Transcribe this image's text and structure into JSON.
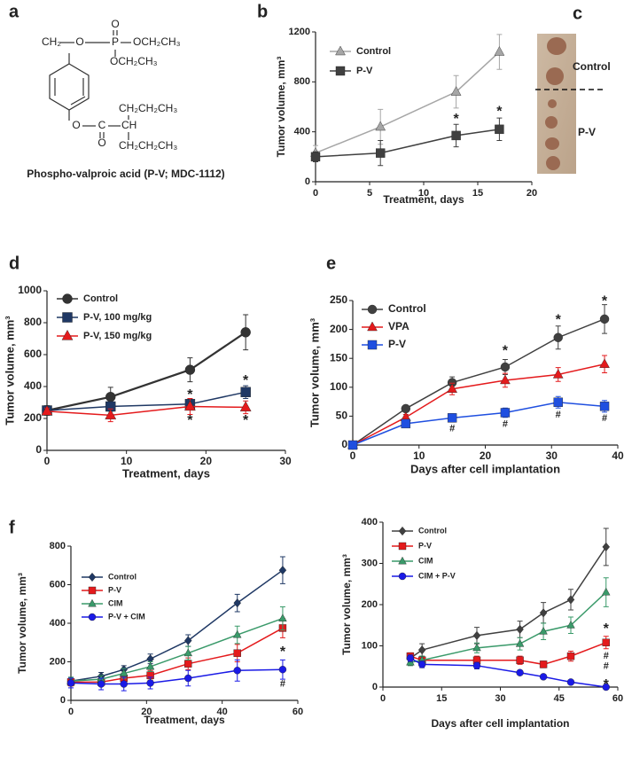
{
  "figure": {
    "structure": {
      "panel": "a",
      "labels": [
        "CH₂",
        "O",
        "P",
        "O",
        "OCH₂CH₃",
        "OCH₂CH₃",
        "O",
        "C",
        "O",
        "CH",
        "CH₂CH₂CH₃",
        "CH₂CH₂CH₃"
      ],
      "caption": "Phospho-valproic acid (P-V; MDC-1112)"
    },
    "photo": {
      "panel": "c",
      "labels": [
        "Control",
        "P-V"
      ]
    }
  },
  "chart_data": [
    {
      "type": "line",
      "panel": "b",
      "xlabel": "Treatment, days",
      "ylabel": "Tumor volume, mm³",
      "x": [
        0,
        6,
        13,
        17
      ],
      "xlim": [
        0,
        20
      ],
      "xticks": [
        0,
        5,
        10,
        15,
        20
      ],
      "ylim": [
        0,
        1200
      ],
      "yticks": [
        0,
        400,
        800,
        1200
      ],
      "legend": "upper left",
      "series": [
        {
          "name": "Control",
          "color": "#a6a6a6",
          "marker": "triangle",
          "values": [
            230,
            440,
            720,
            1040
          ],
          "errors": [
            60,
            140,
            130,
            140
          ]
        },
        {
          "name": "P-V",
          "color": "#404040",
          "marker": "square",
          "values": [
            200,
            230,
            370,
            420
          ],
          "errors": [
            40,
            100,
            90,
            90
          ]
        }
      ],
      "annotations": [
        {
          "text": "*",
          "x": 13,
          "y": 500
        },
        {
          "text": "*",
          "x": 17,
          "y": 560
        }
      ]
    },
    {
      "type": "line",
      "panel": "d",
      "xlabel": "Treatment, days",
      "ylabel": "Tumor volume, mm³",
      "x": [
        0,
        8,
        18,
        25
      ],
      "xlim": [
        0,
        30
      ],
      "xticks": [
        0,
        10,
        20,
        30
      ],
      "ylim": [
        0,
        1000
      ],
      "yticks": [
        0,
        200,
        400,
        600,
        800,
        1000
      ],
      "legend": "upper left",
      "series": [
        {
          "name": "Control",
          "color": "#333333",
          "marker": "circle",
          "values": [
            250,
            335,
            505,
            740
          ],
          "errors": [
            30,
            60,
            75,
            110
          ]
        },
        {
          "name": "P-V, 100 mg/kg",
          "color": "#1f3864",
          "marker": "square",
          "values": [
            250,
            275,
            290,
            365
          ],
          "errors": [
            20,
            30,
            30,
            40
          ]
        },
        {
          "name": "P-V, 150 mg/kg",
          "color": "#e41a1c",
          "marker": "triangle",
          "values": [
            245,
            220,
            275,
            270
          ],
          "errors": [
            20,
            40,
            50,
            40
          ]
        }
      ],
      "annotations": [
        {
          "text": "*",
          "x": 18,
          "y": 345
        },
        {
          "text": "*",
          "x": 25,
          "y": 435
        },
        {
          "text": "*",
          "x": 18,
          "y": 185
        },
        {
          "text": "*",
          "x": 25,
          "y": 185
        }
      ]
    },
    {
      "type": "line",
      "panel": "e",
      "xlabel": "Days after cell implantation",
      "ylabel": "Tumor volume, mm³",
      "x": [
        0,
        8,
        15,
        23,
        31,
        38
      ],
      "xlim": [
        0,
        40
      ],
      "xticks": [
        0,
        10,
        20,
        30,
        40
      ],
      "ylim": [
        0,
        250
      ],
      "yticks": [
        0,
        50,
        100,
        150,
        200,
        250
      ],
      "legend": "upper left",
      "series": [
        {
          "name": "Control",
          "color": "#404040",
          "marker": "circle",
          "values": [
            0,
            63,
            108,
            135,
            186,
            218
          ],
          "errors": [
            0,
            5,
            10,
            13,
            20,
            25
          ]
        },
        {
          "name": "VPA",
          "color": "#e41a1c",
          "marker": "triangle",
          "values": [
            0,
            48,
            97,
            112,
            122,
            140
          ],
          "errors": [
            0,
            5,
            10,
            12,
            12,
            15
          ]
        },
        {
          "name": "P-V",
          "color": "#1f4fe0",
          "marker": "square",
          "values": [
            0,
            37,
            47,
            56,
            74,
            67
          ],
          "errors": [
            0,
            3,
            7,
            8,
            10,
            10
          ]
        }
      ],
      "annotations": [
        {
          "text": "*",
          "x": 23,
          "y": 162
        },
        {
          "text": "*",
          "x": 31,
          "y": 216
        },
        {
          "text": "*",
          "x": 38,
          "y": 248
        },
        {
          "text": "#",
          "x": 15,
          "y": 28
        },
        {
          "text": "#",
          "x": 23,
          "y": 36
        },
        {
          "text": "#",
          "x": 31,
          "y": 52
        },
        {
          "text": "#",
          "x": 38,
          "y": 46
        }
      ]
    },
    {
      "type": "line",
      "panel": "f",
      "xlabel": "Treatment, days",
      "ylabel": "Tumor volume, mm³",
      "x": [
        0,
        8,
        14,
        21,
        31,
        44,
        56
      ],
      "xlim": [
        0,
        60
      ],
      "xticks": [
        0,
        20,
        40,
        60
      ],
      "ylim": [
        0,
        800
      ],
      "yticks": [
        0,
        200,
        400,
        600,
        800
      ],
      "legend": "upper left",
      "series": [
        {
          "name": "Control",
          "color": "#1f3864",
          "marker": "diamond",
          "values": [
            100,
            125,
            160,
            215,
            310,
            505,
            675
          ],
          "errors": [
            20,
            20,
            20,
            25,
            30,
            45,
            70
          ]
        },
        {
          "name": "P-V",
          "color": "#e41a1c",
          "marker": "square",
          "values": [
            95,
            95,
            115,
            130,
            190,
            245,
            375
          ],
          "errors": [
            20,
            20,
            20,
            25,
            30,
            45,
            50
          ]
        },
        {
          "name": "CIM",
          "color": "#3a9a6a",
          "marker": "triangle",
          "values": [
            100,
            110,
            140,
            175,
            245,
            340,
            425
          ],
          "errors": [
            20,
            20,
            25,
            25,
            35,
            45,
            60
          ]
        },
        {
          "name": "P-V + CIM",
          "color": "#1a1ae6",
          "marker": "circle",
          "values": [
            90,
            85,
            85,
            90,
            115,
            155,
            160
          ],
          "errors": [
            25,
            30,
            35,
            30,
            40,
            55,
            50
          ]
        }
      ],
      "annotations": [
        {
          "text": "*",
          "x": 56,
          "y": 250
        },
        {
          "text": "#",
          "x": 56,
          "y": 85
        }
      ]
    },
    {
      "type": "line",
      "xlabel": "Days after cell implantation",
      "ylabel": "Tumor volume, mm³",
      "x": [
        7,
        10,
        24,
        35,
        41,
        48,
        57
      ],
      "xlim": [
        0,
        60
      ],
      "xticks": [
        0,
        15,
        30,
        45,
        60
      ],
      "ylim": [
        0,
        400
      ],
      "yticks": [
        0,
        100,
        200,
        300,
        400
      ],
      "legend": "upper left",
      "series": [
        {
          "name": "Control",
          "color": "#404040",
          "marker": "diamond",
          "values": [
            70,
            90,
            125,
            140,
            180,
            212,
            340
          ],
          "errors": [
            10,
            15,
            20,
            20,
            25,
            25,
            45
          ]
        },
        {
          "name": "P-V",
          "color": "#e41a1c",
          "marker": "square",
          "values": [
            75,
            65,
            65,
            65,
            55,
            75,
            108
          ],
          "errors": [
            8,
            8,
            10,
            10,
            8,
            12,
            15
          ]
        },
        {
          "name": "CIM",
          "color": "#3a9a6a",
          "marker": "triangle",
          "values": [
            60,
            65,
            95,
            105,
            135,
            150,
            230
          ],
          "errors": [
            8,
            10,
            12,
            15,
            20,
            20,
            35
          ]
        },
        {
          "name": "CIM + P-V",
          "color": "#1a1ae6",
          "marker": "circle",
          "values": [
            70,
            55,
            52,
            35,
            25,
            12,
            0
          ],
          "errors": [
            8,
            8,
            8,
            5,
            5,
            3,
            0
          ]
        }
      ],
      "annotations": [
        {
          "text": "*",
          "x": 57,
          "y": 140
        },
        {
          "text": "#",
          "x": 57,
          "y": 75
        },
        {
          "text": "#",
          "x": 57,
          "y": 50
        },
        {
          "text": "*",
          "x": 57,
          "y": 5
        }
      ]
    }
  ]
}
